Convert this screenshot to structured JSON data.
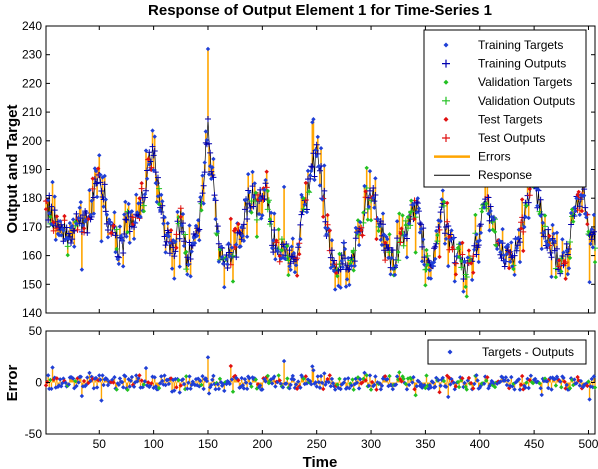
{
  "chart_data": [
    {
      "type": "line",
      "title": "Response of Output Element 1 for Time-Series 1",
      "xlabel": "",
      "ylabel": "Output and Target",
      "xlim": [
        1,
        506
      ],
      "ylim": [
        140,
        240
      ],
      "xticks": [
        50,
        100,
        150,
        200,
        250,
        300,
        350,
        400,
        450,
        500
      ],
      "yticks": [
        140,
        150,
        160,
        170,
        180,
        190,
        200,
        210,
        220,
        230,
        240
      ],
      "grid": false,
      "legend_position": "top-right",
      "legend": [
        {
          "label": "Training Targets",
          "marker": "dot",
          "color": "#1f3fd6"
        },
        {
          "label": "Training Outputs",
          "marker": "plus",
          "color": "#0000b0"
        },
        {
          "label": "Validation Targets",
          "marker": "dot",
          "color": "#22c022"
        },
        {
          "label": "Validation Outputs",
          "marker": "plus",
          "color": "#22c022"
        },
        {
          "label": "Test Targets",
          "marker": "dot",
          "color": "#e01010"
        },
        {
          "label": "Test Outputs",
          "marker": "plus",
          "color": "#e01010"
        },
        {
          "label": "Errors",
          "marker": "line",
          "color": "#ffa500"
        },
        {
          "label": "Response",
          "marker": "line",
          "color": "#000000"
        }
      ],
      "series_envelope": {
        "x": [
          1,
          10,
          20,
          30,
          40,
          45,
          50,
          55,
          60,
          65,
          70,
          75,
          80,
          85,
          90,
          95,
          100,
          105,
          110,
          115,
          120,
          125,
          130,
          135,
          140,
          145,
          150,
          155,
          160,
          165,
          170,
          175,
          180,
          185,
          190,
          195,
          200,
          205,
          210,
          215,
          220,
          225,
          230,
          235,
          240,
          245,
          250,
          255,
          260,
          265,
          270,
          275,
          280,
          285,
          290,
          295,
          300,
          305,
          310,
          315,
          320,
          325,
          330,
          335,
          340,
          345,
          350,
          355,
          360,
          365,
          370,
          375,
          380,
          385,
          390,
          395,
          400,
          405,
          410,
          415,
          420,
          425,
          430,
          435,
          440,
          445,
          450,
          455,
          460,
          465,
          470,
          475,
          480,
          485,
          490,
          495,
          500,
          506
        ],
        "y": [
          178,
          172,
          168,
          170,
          172,
          182,
          192,
          180,
          168,
          165,
          163,
          170,
          175,
          172,
          180,
          190,
          198,
          185,
          168,
          163,
          165,
          172,
          160,
          162,
          170,
          180,
          205,
          185,
          163,
          158,
          160,
          162,
          168,
          176,
          182,
          175,
          185,
          180,
          165,
          160,
          162,
          158,
          160,
          170,
          178,
          188,
          195,
          185,
          168,
          160,
          155,
          160,
          158,
          160,
          168,
          178,
          182,
          175,
          168,
          160,
          160,
          162,
          165,
          172,
          178,
          172,
          160,
          155,
          160,
          175,
          170,
          162,
          160,
          156,
          158,
          162,
          170,
          180,
          175,
          166,
          162,
          158,
          160,
          166,
          172,
          180,
          185,
          178,
          168,
          163,
          160,
          158,
          162,
          172,
          180,
          184,
          170,
          162
        ]
      }
    },
    {
      "type": "scatter",
      "xlabel": "Time",
      "ylabel": "Error",
      "xlim": [
        1,
        506
      ],
      "ylim": [
        -50,
        50
      ],
      "xticks": [
        50,
        100,
        150,
        200,
        250,
        300,
        350,
        400,
        450,
        500
      ],
      "yticks": [
        -50,
        0,
        50
      ],
      "grid": false,
      "legend_position": "top-right",
      "legend": [
        {
          "label": "Targets - Outputs",
          "marker": "dot",
          "color": "#1f3fd6"
        }
      ],
      "error_range": [
        -28,
        32
      ]
    }
  ]
}
